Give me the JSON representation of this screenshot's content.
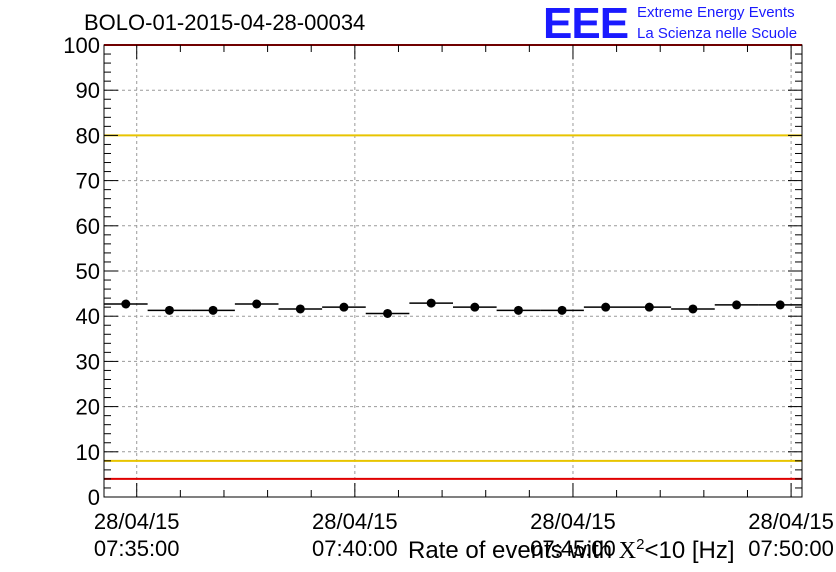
{
  "header": {
    "title": "BOLO-01-2015-04-28-00034",
    "logo_mark": "EEE",
    "logo_line1": "Extreme Energy Events",
    "logo_line2": "La Scienza nelle Scuole"
  },
  "colors": {
    "points": "#000000",
    "upper_limit": "#e8c400",
    "lower_limit": "#e8c400",
    "frame_limit": "#e00000",
    "logo": "#1a1aff",
    "grid": "#9a9a9a"
  },
  "chart_data": {
    "type": "scatter",
    "title": "BOLO-01-2015-04-28-00034",
    "xlabel_parts": {
      "prefix": "Rate of events with ",
      "chi": "X",
      "sup": "2",
      "suffix": "<10 [Hz]"
    },
    "x_unit": "time",
    "xlim": [
      "07:34:15",
      "07:50:15"
    ],
    "ylim": [
      0,
      100
    ],
    "grid": true,
    "y_ticks": [
      0,
      10,
      20,
      30,
      40,
      50,
      60,
      70,
      80,
      90,
      100
    ],
    "x_ticks": [
      {
        "t": "07:35:00",
        "date": "28/04/15",
        "time": "07:35:00"
      },
      {
        "t": "07:40:00",
        "date": "28/04/15",
        "time": "07:40:00"
      },
      {
        "t": "07:45:00",
        "date": "28/04/15",
        "time": "07:45:00"
      },
      {
        "t": "07:50:00",
        "date": "28/04/15",
        "time": "07:50:00"
      }
    ],
    "bin_width_seconds": 60,
    "series": [
      {
        "x": [
          "07:34:45",
          "07:35:45",
          "07:36:45",
          "07:37:45",
          "07:38:45",
          "07:39:45",
          "07:40:45",
          "07:41:45",
          "07:42:45",
          "07:43:45",
          "07:44:45",
          "07:45:45",
          "07:46:45",
          "07:47:45",
          "07:48:45",
          "07:49:45"
        ],
        "y": [
          42.7,
          41.3,
          41.3,
          42.7,
          41.6,
          42.0,
          40.6,
          42.9,
          42.0,
          41.3,
          41.3,
          42.0,
          42.0,
          41.6,
          42.5,
          42.5
        ]
      }
    ],
    "reference_lines": [
      {
        "y": 80,
        "color": "#e8c400"
      },
      {
        "y": 8,
        "color": "#e8c400"
      },
      {
        "y": 100,
        "color": "#e00000"
      },
      {
        "y": 4,
        "color": "#e00000"
      }
    ]
  }
}
